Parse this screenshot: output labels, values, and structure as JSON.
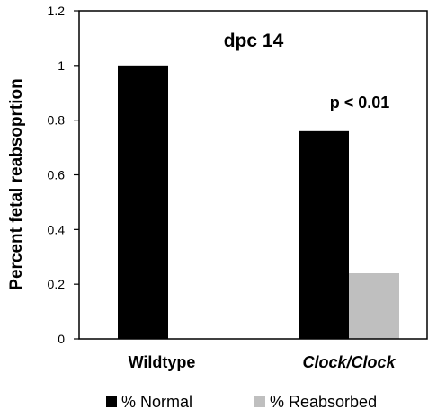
{
  "chart_data": {
    "type": "bar",
    "title": "dpc 14",
    "annotation": "p < 0.01",
    "ylabel": "Percent fetal reabsoprtion",
    "xlabel": "",
    "ylim": [
      0,
      1.2
    ],
    "yticks": [
      "0",
      "0.2",
      "0.4",
      "0.6",
      "0.8",
      "1",
      "1.2"
    ],
    "categories": [
      "Wildtype",
      "Clock/Clock"
    ],
    "series": [
      {
        "name": "% Normal",
        "color": "#000000",
        "values": [
          1.0,
          0.76
        ]
      },
      {
        "name": "% Reabsorbed",
        "color": "#bfbfbf",
        "values": [
          0.0,
          0.24
        ]
      }
    ],
    "grid": false,
    "legend_position": "bottom"
  }
}
